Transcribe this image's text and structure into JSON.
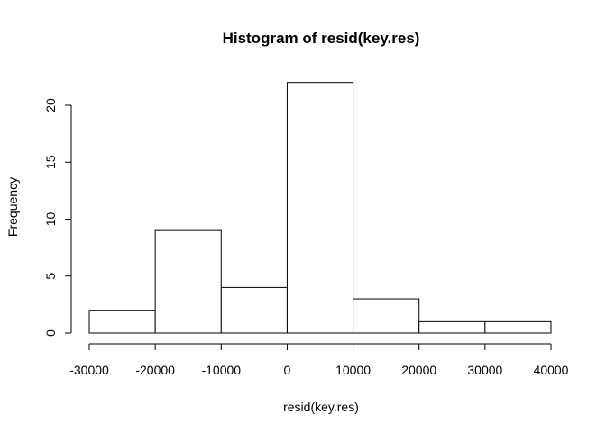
{
  "chart_data": {
    "type": "bar",
    "title": "Histogram of resid(key.res)",
    "xlabel": "resid(key.res)",
    "ylabel": "Frequency",
    "bins": [
      {
        "start": -30000,
        "end": -20000,
        "count": 2
      },
      {
        "start": -20000,
        "end": -10000,
        "count": 9
      },
      {
        "start": -10000,
        "end": 0,
        "count": 4
      },
      {
        "start": 0,
        "end": 10000,
        "count": 22
      },
      {
        "start": 10000,
        "end": 20000,
        "count": 3
      },
      {
        "start": 20000,
        "end": 30000,
        "count": 1
      },
      {
        "start": 30000,
        "end": 40000,
        "count": 1
      }
    ],
    "xlim": [
      -30000,
      40000
    ],
    "ylim": [
      0,
      20
    ],
    "x_ticks": [
      -30000,
      -20000,
      -10000,
      0,
      10000,
      20000,
      30000,
      40000
    ],
    "y_ticks": [
      0,
      5,
      10,
      15,
      20
    ],
    "grid": false
  }
}
